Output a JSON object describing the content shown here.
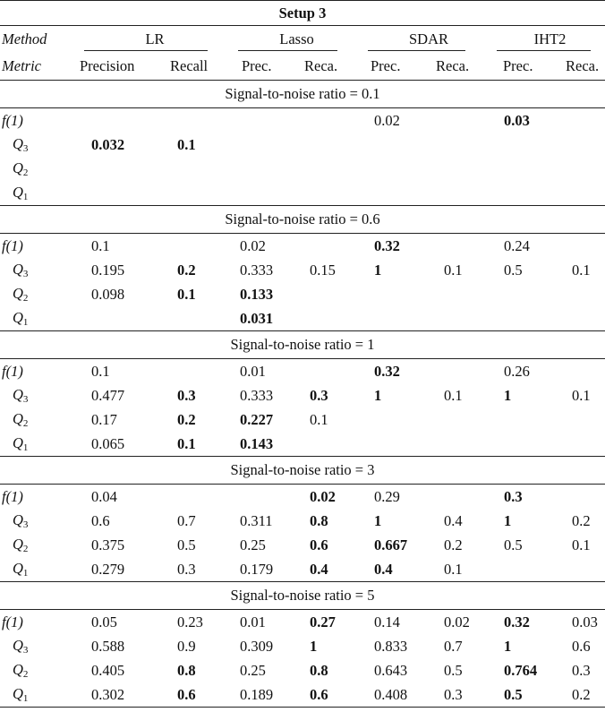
{
  "title": "Setup 3",
  "header": {
    "method_label": "Method",
    "metric_label": "Metric",
    "methods": [
      "LR",
      "Lasso",
      "SDAR",
      "IHT2"
    ],
    "metrics": [
      "Precision",
      "Recall",
      "Prec.",
      "Reca.",
      "Prec.",
      "Reca.",
      "Prec.",
      "Reca."
    ]
  },
  "sections": [
    {
      "label": "Signal-to-noise ratio = 0.1",
      "rows": [
        {
          "stat": "f(1)",
          "cells": [
            null,
            null,
            null,
            null,
            {
              "v": "0.02"
            },
            null,
            {
              "v": "0.03",
              "b": true
            },
            null
          ]
        },
        {
          "stat": "Q3",
          "cells": [
            {
              "v": "0.032",
              "b": true
            },
            {
              "v": "0.1",
              "b": true
            },
            null,
            null,
            null,
            null,
            null,
            null
          ]
        },
        {
          "stat": "Q2",
          "cells": [
            null,
            null,
            null,
            null,
            null,
            null,
            null,
            null
          ]
        },
        {
          "stat": "Q1",
          "cells": [
            null,
            null,
            null,
            null,
            null,
            null,
            null,
            null
          ]
        }
      ]
    },
    {
      "label": "Signal-to-noise ratio = 0.6",
      "rows": [
        {
          "stat": "f(1)",
          "cells": [
            {
              "v": "0.1"
            },
            null,
            {
              "v": "0.02"
            },
            null,
            {
              "v": "0.32",
              "b": true
            },
            null,
            {
              "v": "0.24"
            },
            null
          ]
        },
        {
          "stat": "Q3",
          "cells": [
            {
              "v": "0.195"
            },
            {
              "v": "0.2",
              "b": true
            },
            {
              "v": "0.333"
            },
            {
              "v": "0.15"
            },
            {
              "v": "1",
              "b": true
            },
            {
              "v": "0.1"
            },
            {
              "v": "0.5"
            },
            {
              "v": "0.1"
            }
          ]
        },
        {
          "stat": "Q2",
          "cells": [
            {
              "v": "0.098"
            },
            {
              "v": "0.1",
              "b": true
            },
            {
              "v": "0.133",
              "b": true
            },
            null,
            null,
            null,
            null,
            null
          ]
        },
        {
          "stat": "Q1",
          "cells": [
            null,
            null,
            {
              "v": "0.031",
              "b": true
            },
            null,
            null,
            null,
            null,
            null
          ]
        }
      ]
    },
    {
      "label": "Signal-to-noise ratio = 1",
      "rows": [
        {
          "stat": "f(1)",
          "cells": [
            {
              "v": "0.1"
            },
            null,
            {
              "v": "0.01"
            },
            null,
            {
              "v": "0.32",
              "b": true
            },
            null,
            {
              "v": "0.26"
            },
            null
          ]
        },
        {
          "stat": "Q3",
          "cells": [
            {
              "v": "0.477"
            },
            {
              "v": "0.3",
              "b": true
            },
            {
              "v": "0.333"
            },
            {
              "v": "0.3",
              "b": true
            },
            {
              "v": "1",
              "b": true
            },
            {
              "v": "0.1"
            },
            {
              "v": "1",
              "b": true
            },
            {
              "v": "0.1"
            }
          ]
        },
        {
          "stat": "Q2",
          "cells": [
            {
              "v": "0.17"
            },
            {
              "v": "0.2",
              "b": true
            },
            {
              "v": "0.227",
              "b": true
            },
            {
              "v": "0.1"
            },
            null,
            null,
            null,
            null
          ]
        },
        {
          "stat": "Q1",
          "cells": [
            {
              "v": "0.065"
            },
            {
              "v": "0.1",
              "b": true
            },
            {
              "v": "0.143",
              "b": true
            },
            null,
            null,
            null,
            null,
            null
          ]
        }
      ]
    },
    {
      "label": "Signal-to-noise ratio = 3",
      "rows": [
        {
          "stat": "f(1)",
          "cells": [
            {
              "v": "0.04"
            },
            null,
            null,
            {
              "v": "0.02",
              "b": true
            },
            {
              "v": "0.29"
            },
            null,
            {
              "v": "0.3",
              "b": true
            },
            null
          ]
        },
        {
          "stat": "Q3",
          "cells": [
            {
              "v": "0.6"
            },
            {
              "v": "0.7"
            },
            {
              "v": "0.311"
            },
            {
              "v": "0.8",
              "b": true
            },
            {
              "v": "1",
              "b": true
            },
            {
              "v": "0.4"
            },
            {
              "v": "1",
              "b": true
            },
            {
              "v": "0.2"
            }
          ]
        },
        {
          "stat": "Q2",
          "cells": [
            {
              "v": "0.375"
            },
            {
              "v": "0.5"
            },
            {
              "v": "0.25"
            },
            {
              "v": "0.6",
              "b": true
            },
            {
              "v": "0.667",
              "b": true
            },
            {
              "v": "0.2"
            },
            {
              "v": "0.5"
            },
            {
              "v": "0.1"
            }
          ]
        },
        {
          "stat": "Q1",
          "cells": [
            {
              "v": "0.279"
            },
            {
              "v": "0.3"
            },
            {
              "v": "0.179"
            },
            {
              "v": "0.4",
              "b": true
            },
            {
              "v": "0.4",
              "b": true
            },
            {
              "v": "0.1"
            },
            null,
            null
          ]
        }
      ]
    },
    {
      "label": "Signal-to-noise ratio = 5",
      "rows": [
        {
          "stat": "f(1)",
          "cells": [
            {
              "v": "0.05"
            },
            {
              "v": "0.23"
            },
            {
              "v": "0.01"
            },
            {
              "v": "0.27",
              "b": true
            },
            {
              "v": "0.14"
            },
            {
              "v": "0.02"
            },
            {
              "v": "0.32",
              "b": true
            },
            {
              "v": "0.03"
            }
          ]
        },
        {
          "stat": "Q3",
          "cells": [
            {
              "v": "0.588"
            },
            {
              "v": "0.9"
            },
            {
              "v": "0.309"
            },
            {
              "v": "1",
              "b": true
            },
            {
              "v": "0.833"
            },
            {
              "v": "0.7"
            },
            {
              "v": "1",
              "b": true
            },
            {
              "v": "0.6"
            }
          ]
        },
        {
          "stat": "Q2",
          "cells": [
            {
              "v": "0.405"
            },
            {
              "v": "0.8",
              "b": true
            },
            {
              "v": "0.25"
            },
            {
              "v": "0.8",
              "b": true
            },
            {
              "v": "0.643"
            },
            {
              "v": "0.5"
            },
            {
              "v": "0.764",
              "b": true
            },
            {
              "v": "0.3"
            }
          ]
        },
        {
          "stat": "Q1",
          "cells": [
            {
              "v": "0.302"
            },
            {
              "v": "0.6",
              "b": true
            },
            {
              "v": "0.189"
            },
            {
              "v": "0.6",
              "b": true
            },
            {
              "v": "0.408"
            },
            {
              "v": "0.3"
            },
            {
              "v": "0.5",
              "b": true
            },
            {
              "v": "0.2"
            }
          ]
        }
      ]
    }
  ]
}
